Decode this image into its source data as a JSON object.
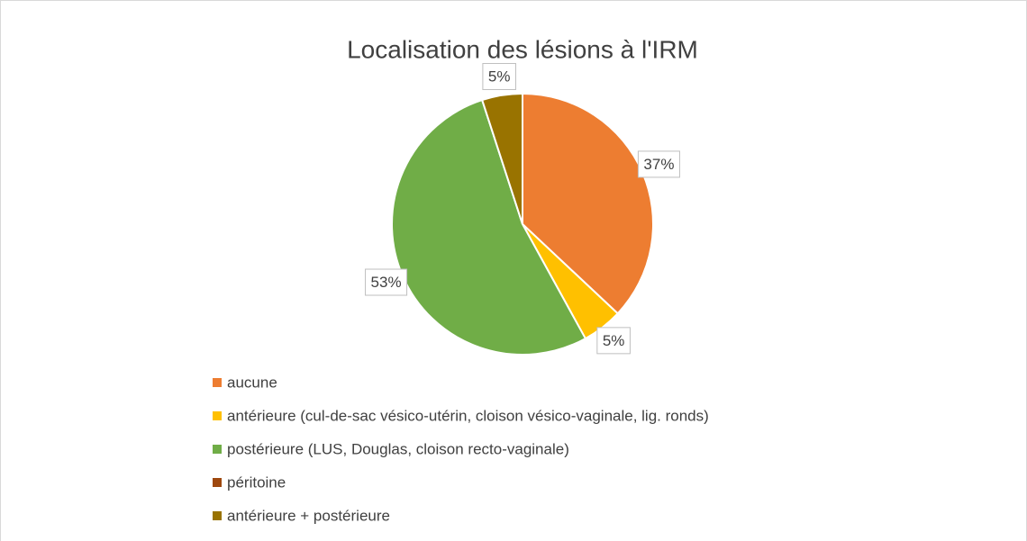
{
  "chart_data": {
    "type": "pie",
    "title": "Localisation des lésions à l'IRM",
    "categories": [
      "aucune",
      "antérieure (cul-de-sac vésico-utérin, cloison vésico-vaginale, lig. ronds)",
      "postérieure (LUS, Douglas, cloison recto-vaginale)",
      "péritoine",
      "antérieure + postérieure"
    ],
    "values": [
      37,
      5,
      53,
      0,
      5
    ],
    "value_labels": [
      "37%",
      "5%",
      "53%",
      null,
      "5%"
    ],
    "colors": [
      "#ed7d31",
      "#ffc000",
      "#70ad47",
      "#9e480e",
      "#997300"
    ]
  }
}
